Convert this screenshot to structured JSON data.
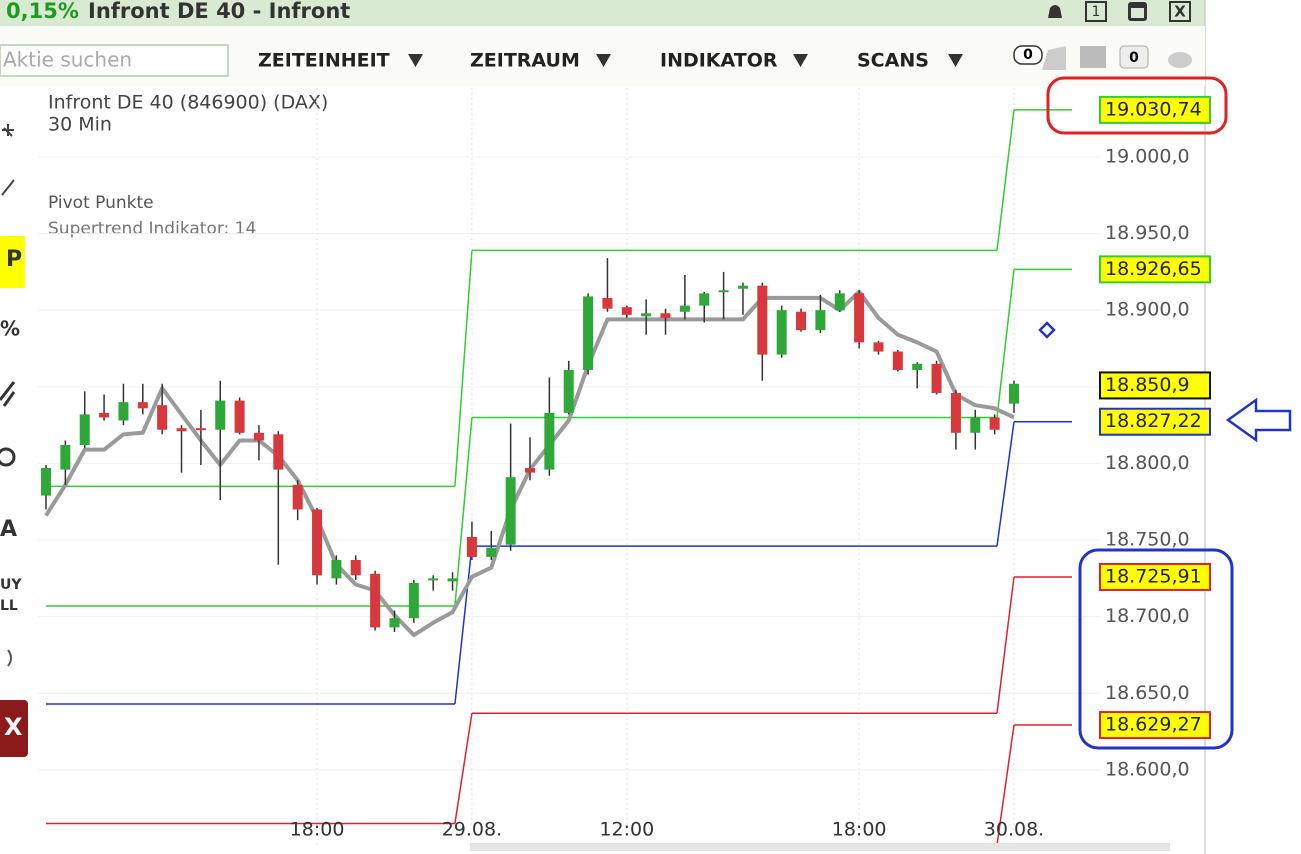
{
  "window": {
    "change": "0,15%",
    "title": "Infront DE 40 - Infront",
    "buttons": [
      "1",
      "X"
    ]
  },
  "toolbar": {
    "search_placeholder": "Aktie suchen",
    "menus": [
      "ZEITEINHEIT",
      "ZEITRAUM",
      "INDIKATOR",
      "SCANS"
    ],
    "badges": [
      "0",
      "0"
    ]
  },
  "sidebar": {
    "tools": [
      "P",
      "%",
      "A",
      "UY",
      "LL",
      "X"
    ]
  },
  "chart_data": {
    "type": "candlestick",
    "instrument": "Infront DE 40 (846900) (DAX)",
    "interval": "30 Min",
    "indicators": [
      "Pivot Punkte",
      "Supertrend Indikator: 14"
    ],
    "colors": {
      "up": "#2fa83a",
      "down": "#d8373c"
    },
    "ohlc": {
      "open": [
        18779,
        18796,
        18812,
        18833,
        18828,
        18840,
        18838,
        18823,
        18823,
        18822,
        18841,
        18820,
        18819,
        18786,
        18770,
        18725,
        18737,
        18728,
        18693,
        18699,
        18724,
        18723,
        18752,
        18739,
        18747,
        18797,
        18796,
        18833,
        18861,
        18908,
        18902,
        18896,
        18898,
        18899,
        18903,
        18912,
        18914,
        18916,
        18871,
        18899,
        18887,
        18900,
        18911,
        18879,
        18873,
        18861,
        18865,
        18846,
        18820,
        18830,
        18839
      ],
      "high": [
        18799,
        18815,
        18847,
        18845,
        18852,
        18852,
        18852,
        18825,
        18835,
        18854,
        18843,
        18825,
        18821,
        18789,
        18771,
        18740,
        18740,
        18730,
        18704,
        18724,
        18727,
        18729,
        18762,
        18756,
        18826,
        18817,
        18856,
        18867,
        18911,
        18934,
        18903,
        18907,
        18901,
        18923,
        18912,
        18925,
        18918,
        18918,
        18903,
        18901,
        18910,
        18913,
        18913,
        18880,
        18874,
        18866,
        18867,
        18848,
        18835,
        18832,
        18854
      ],
      "low": [
        18770,
        18786,
        18810,
        18828,
        18825,
        18832,
        18819,
        18794,
        18799,
        18776,
        18819,
        18802,
        18734,
        18763,
        18721,
        18721,
        18724,
        18691,
        18690,
        18696,
        18717,
        18717,
        18737,
        18737,
        18743,
        18789,
        18792,
        18832,
        18858,
        18899,
        18895,
        18884,
        18884,
        18894,
        18892,
        18894,
        18897,
        18854,
        18869,
        18886,
        18885,
        18899,
        18875,
        18871,
        18860,
        18849,
        18845,
        18809,
        18809,
        18819,
        18833
      ],
      "close": [
        18797,
        18812,
        18832,
        18830,
        18840,
        18836,
        18822,
        18821,
        18822,
        18841,
        18820,
        18815,
        18796,
        18770,
        18727,
        18737,
        18727,
        18693,
        18699,
        18722,
        18725,
        18725,
        18739,
        18745,
        18791,
        18794,
        18833,
        18861,
        18909,
        18901,
        18897,
        18898,
        18895,
        18903,
        18911,
        18913,
        18916,
        18871,
        18900,
        18887,
        18900,
        18911,
        18879,
        18873,
        18861,
        18865,
        18846,
        18820,
        18830,
        18822,
        18852
      ]
    },
    "supertrend": {
      "color": "#9a9a9a",
      "values": [
        18766,
        18786,
        18809,
        18809,
        18819,
        18820,
        18849,
        18832,
        18815,
        18799,
        18815,
        18815,
        18805,
        18789,
        18764,
        18734,
        18721,
        18717,
        18701,
        18688,
        18696,
        18703,
        18726,
        18732,
        18770,
        18796,
        18812,
        18828,
        18864,
        18894,
        18894,
        18894,
        18894,
        18894,
        18894,
        18894,
        18894,
        18908,
        18908,
        18908,
        18908,
        18900,
        18912,
        18895,
        18884,
        18879,
        18873,
        18845,
        18838,
        18836,
        18830
      ]
    },
    "levels": [
      {
        "color": "#33cc33",
        "values": [
          18785,
          18939,
          19030.74
        ],
        "value_labels": [
          null,
          null,
          "19.030,74"
        ]
      },
      {
        "color": "#33cc33",
        "values": [
          18707,
          18830,
          18926.65
        ],
        "value_labels": [
          null,
          null,
          "18.926,65"
        ]
      },
      {
        "color": "#2233cc",
        "values": [
          18643,
          18746,
          18827.22
        ],
        "value_labels": [
          null,
          null,
          "18.827,22"
        ]
      },
      {
        "color": "#dd2233",
        "values": [
          18565,
          18637,
          18725.91
        ],
        "value_labels": [
          null,
          null,
          "18.725,91"
        ]
      },
      {
        "color": "#dd2233",
        "values": [
          null,
          null,
          18629.27
        ],
        "value_labels": [
          null,
          null,
          "18.629,27"
        ]
      }
    ],
    "last": {
      "value": 18850.9,
      "label": "18.850,9"
    },
    "ylim": [
      18551,
      19045
    ],
    "yticks": [
      {
        "value": 19000,
        "label": "19.000,0"
      },
      {
        "value": 18950,
        "label": "18.950,0"
      },
      {
        "value": 18900,
        "label": "18.900,0"
      },
      {
        "value": 18850,
        "label": "18.850,0"
      },
      {
        "value": 18800,
        "label": "18.800,0"
      },
      {
        "value": 18750,
        "label": "18.750,0"
      },
      {
        "value": 18700,
        "label": "18.700,0"
      },
      {
        "value": 18650,
        "label": "18.650,0"
      },
      {
        "value": 18600,
        "label": "18.600,0"
      }
    ],
    "xticks": [
      {
        "value": 14,
        "label": "18:00"
      },
      {
        "value": 22,
        "label": "29.08."
      },
      {
        "value": 30,
        "label": "12:00"
      },
      {
        "value": 42,
        "label": "18:00"
      },
      {
        "value": 50,
        "label": "30.08."
      }
    ],
    "grid": true
  }
}
